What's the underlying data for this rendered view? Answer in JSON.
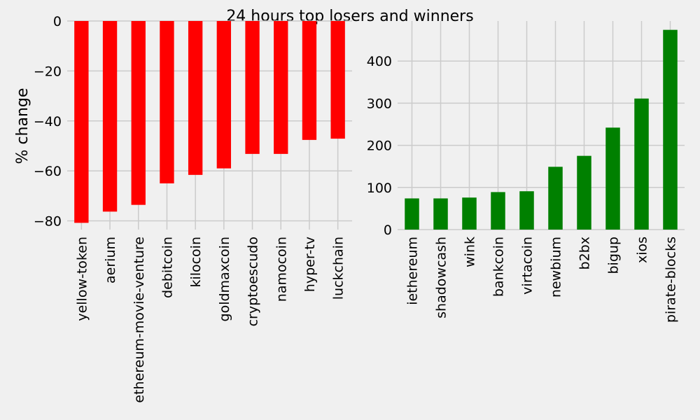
{
  "title": "24 hours top losers and winners",
  "chart_data": [
    {
      "type": "bar",
      "name": "losers",
      "ylabel": "% change",
      "xlabel": "",
      "color": "#ff0000",
      "ylim": [
        -83.5,
        0
      ],
      "yticks": [
        0,
        -20,
        -40,
        -60,
        -80
      ],
      "ytick_labels": [
        "0",
        "−20",
        "−40",
        "−60",
        "−80"
      ],
      "categories": [
        "yellow-token",
        "aerium",
        "ethereum-movie-venture",
        "debitcoin",
        "kilocoin",
        "goldmaxcoin",
        "cryptoescudo",
        "namocoin",
        "hyper-tv",
        "luckchain"
      ],
      "values": [
        -80.8,
        -76.3,
        -73.6,
        -65.0,
        -61.6,
        -59.0,
        -53.2,
        -53.2,
        -47.6,
        -47.1
      ],
      "grid": true
    },
    {
      "type": "bar",
      "name": "winners",
      "ylabel": "",
      "xlabel": "",
      "color": "#008000",
      "ylim": [
        0,
        495
      ],
      "yticks": [
        0,
        100,
        200,
        300,
        400
      ],
      "ytick_labels": [
        "0",
        "100",
        "200",
        "300",
        "400"
      ],
      "categories": [
        "iethereum",
        "shadowcash",
        "wink",
        "bankcoin",
        "virtacoin",
        "newbium",
        "b2bx",
        "bigup",
        "xios",
        "pirate-blocks"
      ],
      "values": [
        74,
        74,
        76,
        89,
        91,
        149,
        175,
        242,
        311,
        474
      ],
      "grid": true
    }
  ]
}
